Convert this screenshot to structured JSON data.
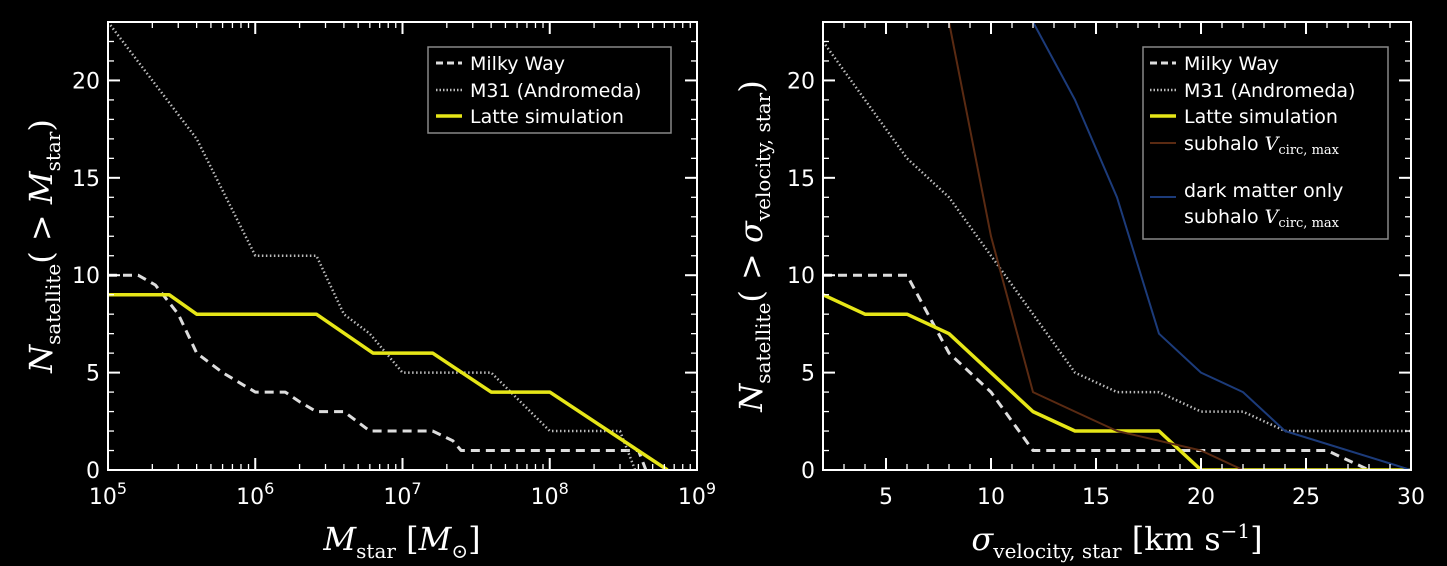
{
  "chart_data": [
    {
      "type": "line",
      "xscale": "log",
      "xlim": [
        100000,
        1000000000
      ],
      "ylim": [
        0,
        23
      ],
      "xticks": [
        100000,
        1000000,
        10000000,
        100000000,
        1000000000
      ],
      "xtick_labels": [
        {
          "base": "10",
          "exp": "5"
        },
        {
          "base": "10",
          "exp": "6"
        },
        {
          "base": "10",
          "exp": "7"
        },
        {
          "base": "10",
          "exp": "8"
        },
        {
          "base": "10",
          "exp": "9"
        }
      ],
      "yticks": [
        0,
        5,
        10,
        15,
        20
      ],
      "ytick_labels": [
        "0",
        "5",
        "10",
        "15",
        "20"
      ],
      "xlabel": {
        "sym": "M",
        "sub": "star",
        "unit_sym": "M",
        "unit_sub": "⊙"
      },
      "ylabel": {
        "sym": "N",
        "sub": "satellite",
        "arg_sym": "M",
        "arg_sub": "star"
      },
      "legend_position": "upper-right",
      "series": [
        {
          "name": "Milky Way",
          "style": "dashed",
          "color": "#dddddd",
          "x": [
            100000,
            160000,
            210000,
            300000,
            400000,
            600000,
            1000000,
            1600000,
            2000000,
            2600000,
            4000000,
            6000000,
            16000000,
            22000000,
            25000000,
            400000000,
            450000000
          ],
          "y": [
            10,
            10,
            9.5,
            8,
            6,
            5,
            4,
            4,
            3.5,
            3,
            3,
            2,
            2,
            1.5,
            1,
            1,
            0
          ]
        },
        {
          "name": "M31 (Andromeda)",
          "style": "dotted",
          "color": "#bbbbbb",
          "x": [
            100000,
            400000,
            1000000,
            2600000,
            4000000,
            6000000,
            10000000,
            40000000,
            100000000,
            300000000,
            380000000
          ],
          "y": [
            23,
            17,
            11,
            11,
            8,
            7,
            5,
            5,
            2,
            2,
            0
          ]
        },
        {
          "name": "Latte simulation",
          "style": "solid",
          "color": "#e6e617",
          "x": [
            100000,
            260000,
            400000,
            2600000,
            6300000,
            16000000,
            40000000,
            100000000,
            630000000
          ],
          "y": [
            9,
            9,
            8,
            8,
            6,
            6,
            4,
            4,
            0
          ]
        }
      ]
    },
    {
      "type": "line",
      "xscale": "linear",
      "xlim": [
        2,
        30
      ],
      "ylim": [
        0,
        23
      ],
      "xticks": [
        5,
        10,
        15,
        20,
        25,
        30
      ],
      "xtick_labels": [
        "5",
        "10",
        "15",
        "20",
        "25",
        "30"
      ],
      "yticks": [
        0,
        5,
        10,
        15,
        20
      ],
      "ytick_labels": [
        "0",
        "5",
        "10",
        "15",
        "20"
      ],
      "xlabel": {
        "sym": "σ",
        "sub": "velocity, star",
        "unit": "km s",
        "unit_exp": "−1"
      },
      "ylabel": {
        "sym": "N",
        "sub": "satellite",
        "arg_sym": "σ",
        "arg_sub": "velocity, star"
      },
      "legend_position": "upper-right",
      "series": [
        {
          "name": "Milky Way",
          "style": "dashed",
          "color": "#dddddd",
          "x": [
            2,
            6,
            8,
            10,
            12,
            26,
            28
          ],
          "y": [
            10,
            10,
            6,
            4,
            1,
            1,
            0
          ]
        },
        {
          "name": "M31 (Andromeda)",
          "style": "dotted",
          "color": "#bbbbbb",
          "x": [
            2,
            6,
            8,
            10,
            12,
            14,
            16,
            18,
            20,
            22,
            24,
            30
          ],
          "y": [
            22,
            16,
            14,
            11,
            8,
            5,
            4,
            4,
            3,
            3,
            2,
            2
          ]
        },
        {
          "name": "Latte simulation",
          "style": "solid",
          "color": "#e6e617",
          "x": [
            2,
            4,
            6,
            8,
            12,
            14,
            18,
            20,
            30
          ],
          "y": [
            9,
            8,
            8,
            7,
            3,
            2,
            2,
            0,
            0
          ]
        },
        {
          "name": "subhalo",
          "name_sym": "V",
          "name_sub": "circ, max",
          "style": "solid",
          "color": "#5a2a12",
          "x": [
            8,
            10,
            12,
            14,
            16,
            20,
            22
          ],
          "y": [
            23,
            12,
            4,
            3,
            2,
            1,
            0
          ]
        },
        {
          "name_line1": "dark matter only",
          "name": "subhalo",
          "name_sym": "V",
          "name_sub": "circ, max",
          "style": "solid",
          "color": "#1c3b7a",
          "x": [
            12,
            14,
            16,
            18,
            20,
            22,
            24,
            30
          ],
          "y": [
            23,
            19,
            14,
            7,
            5,
            4,
            2,
            0
          ]
        }
      ]
    }
  ]
}
